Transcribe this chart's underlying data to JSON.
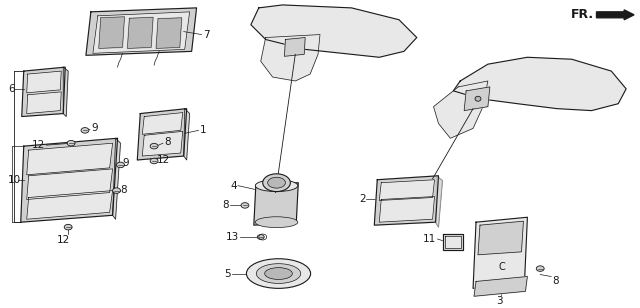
{
  "bg_color": "#ffffff",
  "line_color": "#1a1a1a",
  "fill_light": "#e8e8e8",
  "fill_mid": "#d0d0d0",
  "fill_dark": "#b8b8b8",
  "lw_main": 0.8,
  "lw_thin": 0.5,
  "fs_label": 7.5
}
